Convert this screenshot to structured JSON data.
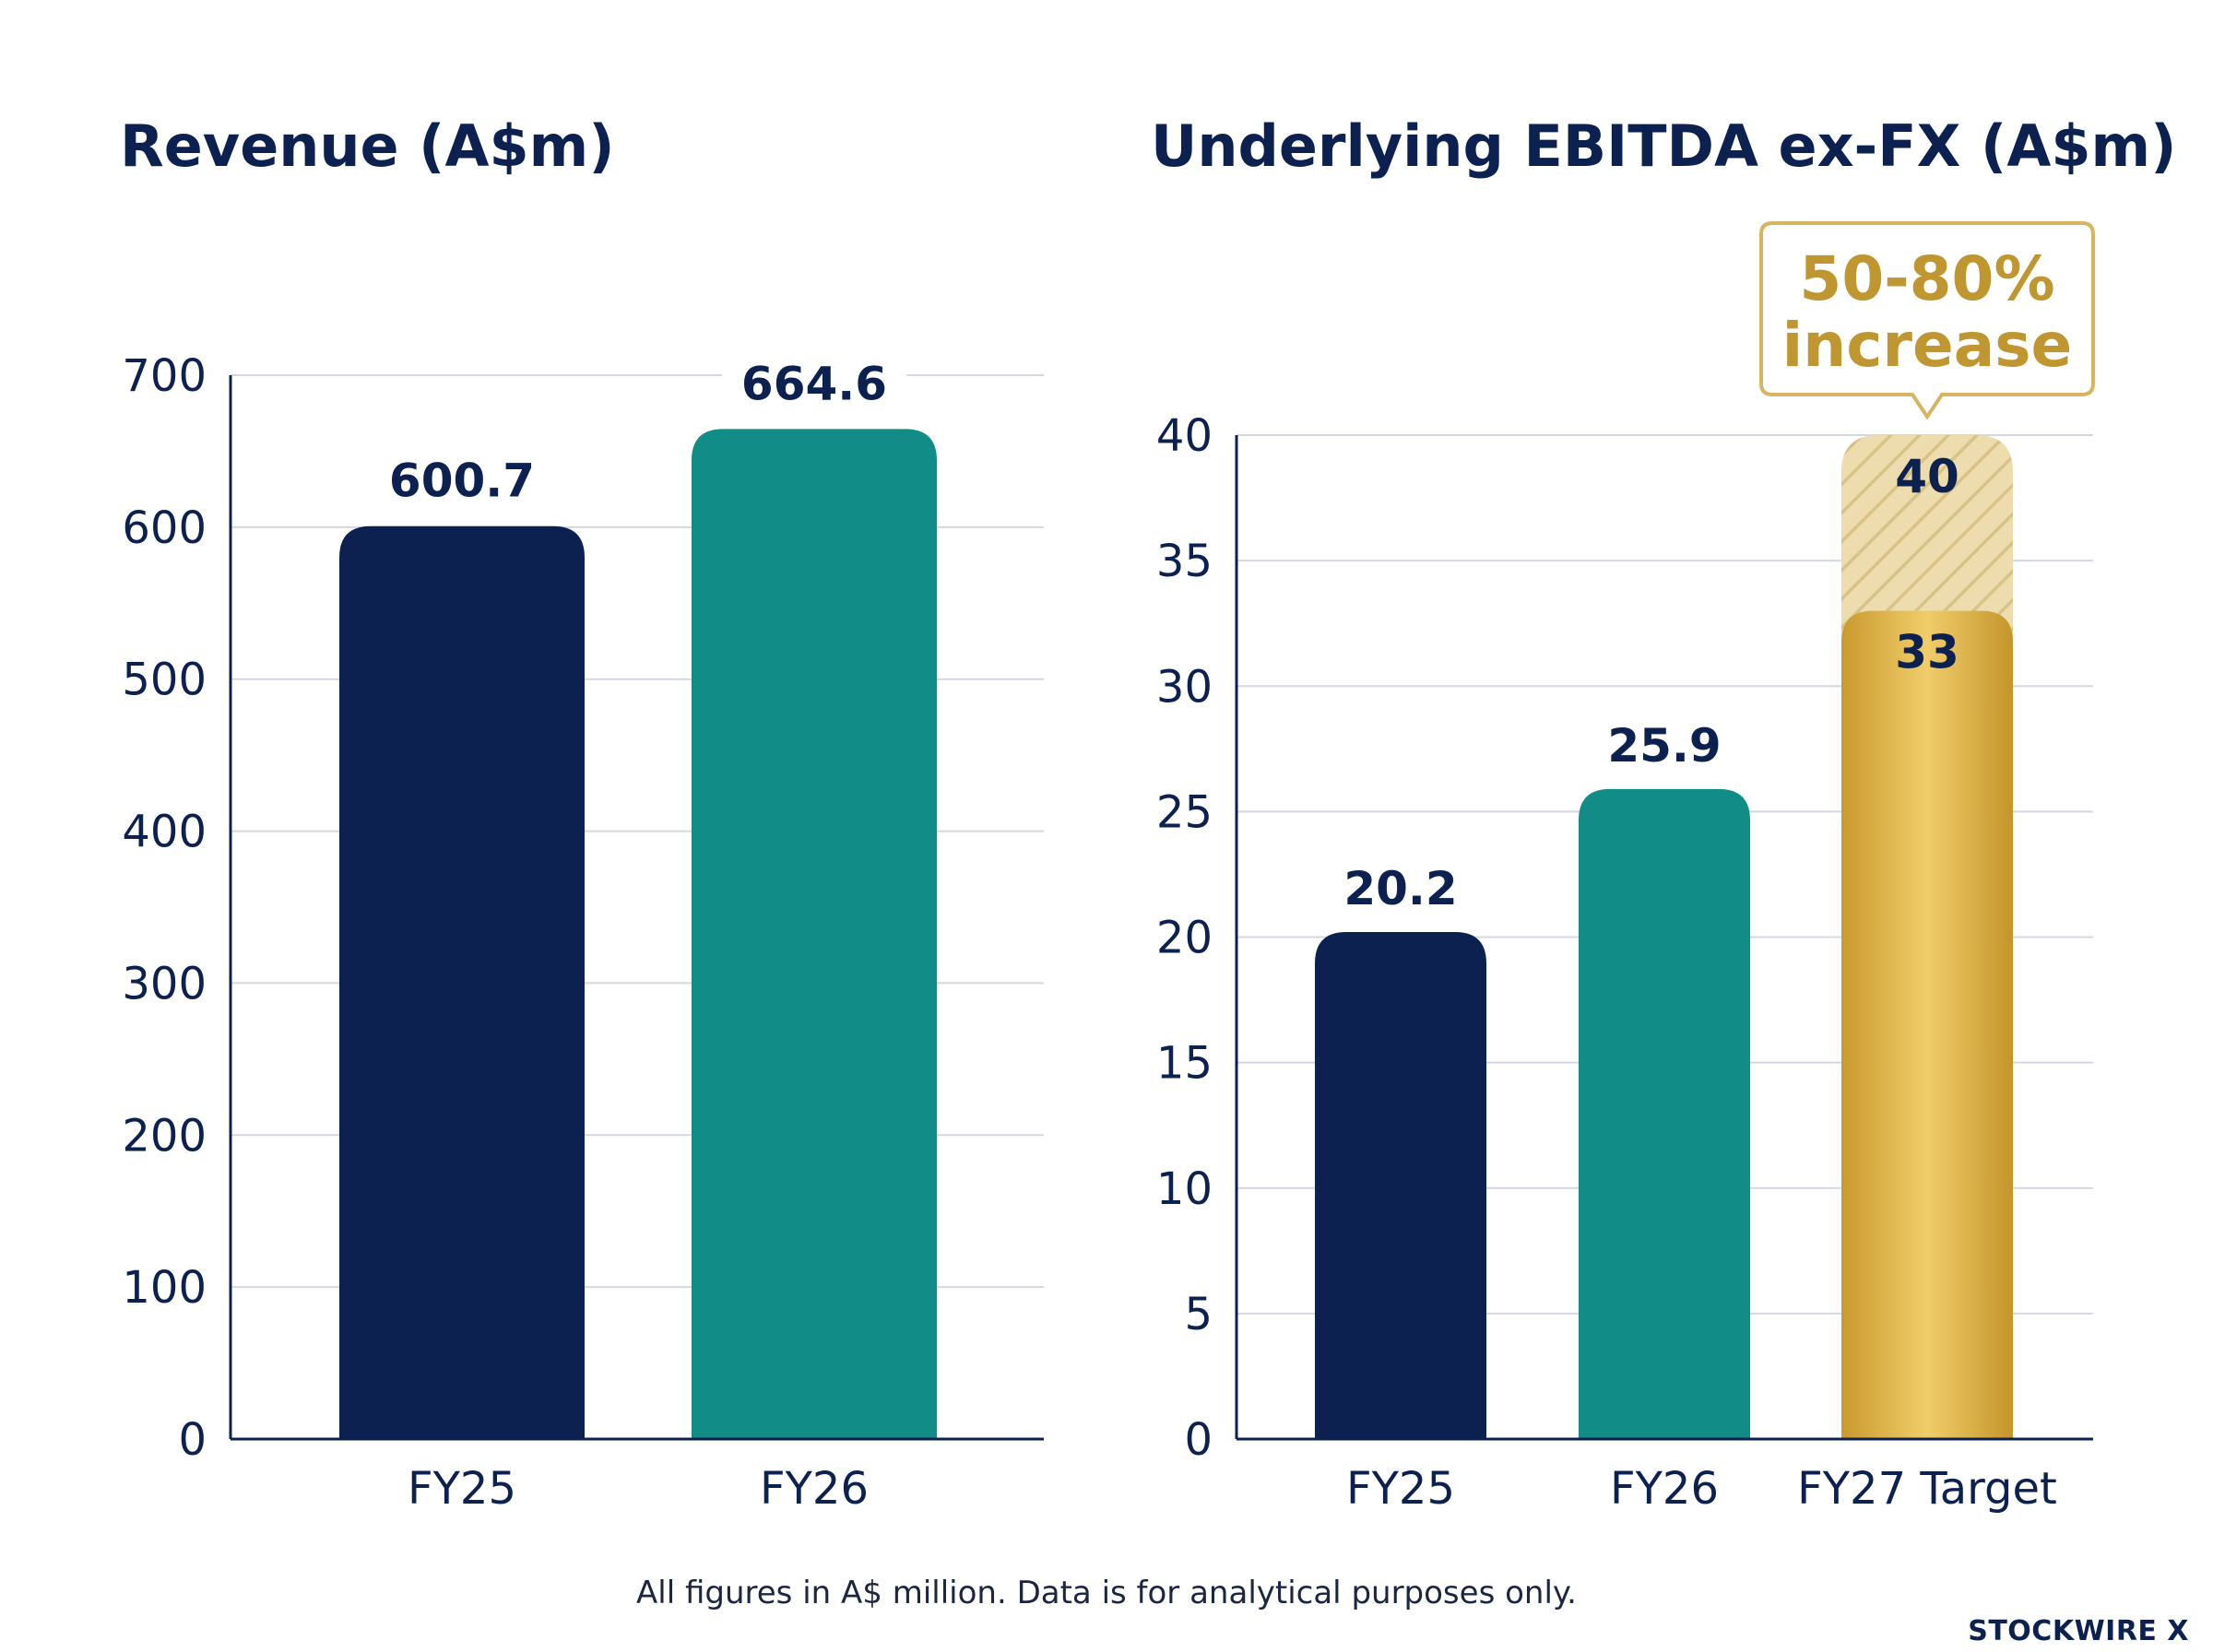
{
  "colors": {
    "navy": "#0c2150",
    "teal": "#128c86",
    "gold": "#d4a93c",
    "gold_light": "#ecd28a",
    "grid": "#d3d8e0"
  },
  "chart_data": [
    {
      "type": "bar",
      "title": "Revenue (A$m)",
      "categories": [
        "FY25",
        "FY26"
      ],
      "values": [
        600.7,
        664.6
      ],
      "value_labels": [
        "600.7",
        "664.6"
      ],
      "ylim": [
        0,
        700
      ],
      "yticks": [
        0,
        100,
        200,
        300,
        400,
        500,
        600,
        700
      ],
      "grid": true,
      "xlabel": "",
      "ylabel": ""
    },
    {
      "type": "bar",
      "title": "Underlying EBITDA ex-FX (A$m)",
      "categories": [
        "FY25",
        "FY26",
        "FY27 Target"
      ],
      "values": [
        20.2,
        25.9,
        33
      ],
      "value_labels": [
        "20.2",
        "25.9",
        "33"
      ],
      "target_range": {
        "category": "FY27 Target",
        "low": 33,
        "high": 40,
        "high_label": "40"
      },
      "annotation": [
        "50-80%",
        "increase"
      ],
      "ylim": [
        0,
        40
      ],
      "yticks": [
        0,
        5,
        10,
        15,
        20,
        25,
        30,
        35,
        40
      ],
      "grid": true,
      "xlabel": "",
      "ylabel": ""
    }
  ],
  "footnote": "All figures in A$ million. Data is for analytical purposes only.",
  "brand": "STOCKWIRE X"
}
